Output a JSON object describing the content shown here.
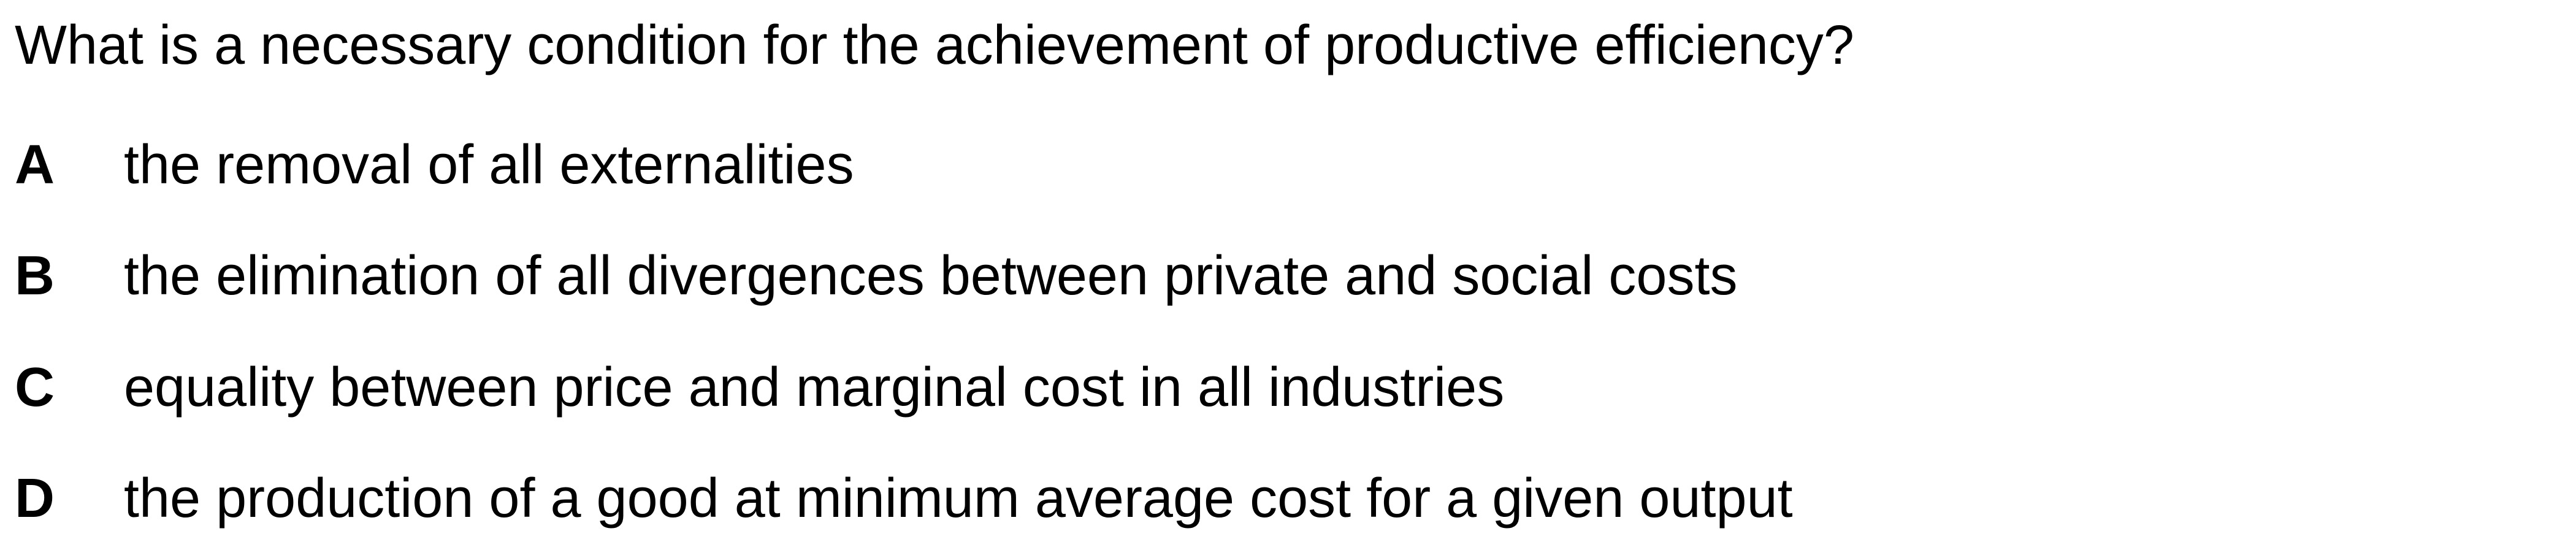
{
  "question": {
    "text": "What is a necessary condition for the achievement of productive efficiency?"
  },
  "options": [
    {
      "letter": "A",
      "text": "the removal of all externalities"
    },
    {
      "letter": "B",
      "text": "the elimination of all divergences between private and social costs"
    },
    {
      "letter": "C",
      "text": "equality between price and marginal cost in all industries"
    },
    {
      "letter": "D",
      "text": "the production of a good at minimum average cost for a given output"
    }
  ]
}
